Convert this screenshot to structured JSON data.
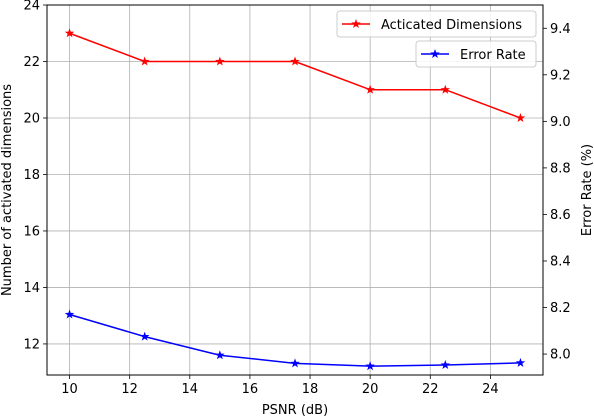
{
  "chart_data": {
    "type": "line",
    "x": [
      10,
      12.5,
      15,
      17.5,
      20,
      22.5,
      25
    ],
    "xlabel": "PSNR (dB)",
    "xlim": [
      9.25,
      25.75
    ],
    "xticks": [
      10,
      12,
      14,
      16,
      18,
      20,
      22,
      24
    ],
    "ylabel": "Number of activated dimensions",
    "ylim": [
      10.9,
      24.0
    ],
    "yticks": [
      12,
      14,
      16,
      18,
      20,
      22,
      24
    ],
    "y2label": "Error Rate (%)",
    "y2lim": [
      7.91,
      9.5
    ],
    "y2ticks": [
      "8.0",
      "8.2",
      "8.4",
      "8.6",
      "8.8",
      "9.0",
      "9.2",
      "9.4"
    ],
    "grid": true,
    "series": [
      {
        "name": "Acticated Dimensions",
        "axis": "left",
        "color": "#ff0000",
        "marker": "star",
        "values": [
          23,
          22,
          22,
          22,
          21,
          21,
          20
        ]
      },
      {
        "name": "Error Rate",
        "axis": "right",
        "color": "#0000ff",
        "marker": "star",
        "values": [
          8.17,
          8.075,
          7.995,
          7.96,
          7.948,
          7.953,
          7.962
        ]
      }
    ],
    "legends": [
      {
        "series": 0,
        "placement": "top-right"
      },
      {
        "series": 1,
        "placement": "upper-right"
      }
    ]
  }
}
